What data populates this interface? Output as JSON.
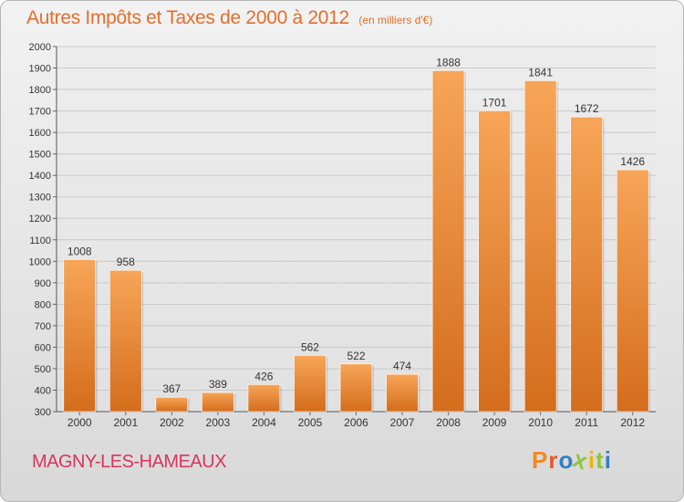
{
  "header": {
    "title": "Autres Impôts et Taxes de 2000 à 2012",
    "subtitle": "(en milliers d'€)"
  },
  "footer": {
    "commune": "MAGNY-LES-HAMEAUX",
    "logo": "Proxiti"
  },
  "colors": {
    "title": "#e26f2c",
    "commune": "#d9345e",
    "bar_top": "#f7a558",
    "bar_bottom": "#d46d1c",
    "logo_letters": [
      "#f08a24",
      "#e8562a",
      "#2f80c8",
      "#8cc63f",
      "#f0b400",
      "#8cc63f",
      "#2f80c8"
    ]
  },
  "chart_data": {
    "type": "bar",
    "title": "Autres Impôts et Taxes de 2000 à 2012",
    "subtitle": "(en milliers d'€)",
    "xlabel": "",
    "ylabel": "",
    "categories": [
      "2000",
      "2001",
      "2002",
      "2003",
      "2004",
      "2005",
      "2006",
      "2007",
      "2008",
      "2009",
      "2010",
      "2011",
      "2012"
    ],
    "values": [
      1008,
      958,
      367,
      389,
      426,
      562,
      522,
      474,
      1888,
      1701,
      1841,
      1672,
      1426
    ],
    "ylim": [
      300,
      2000
    ],
    "yticks": [
      300,
      400,
      500,
      600,
      700,
      800,
      900,
      1000,
      1100,
      1200,
      1300,
      1400,
      1500,
      1600,
      1700,
      1800,
      1900,
      2000
    ],
    "grid": true,
    "data_labels": true
  }
}
